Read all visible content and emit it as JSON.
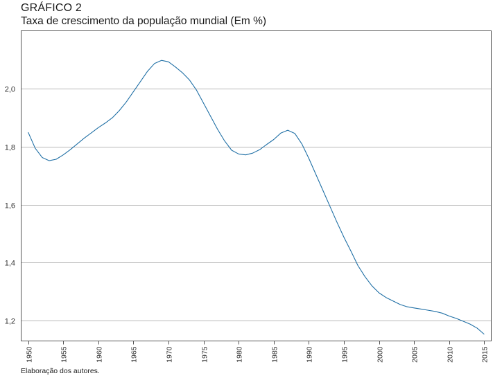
{
  "figure": {
    "label": "GRÁFICO 2",
    "title": "Taxa de crescimento da população mundial (Em %)",
    "source": "Elaboração dos autores."
  },
  "chart_data": {
    "type": "line",
    "title": "Taxa de crescimento da população mundial (Em %)",
    "xlabel": "",
    "ylabel": "",
    "xlim": [
      1949,
      2016
    ],
    "ylim": [
      1.13,
      2.2
    ],
    "grid": true,
    "y_ticks": [
      1.2,
      1.4,
      1.6,
      1.8,
      2.0
    ],
    "y_tick_labels": [
      "1,2",
      "1,4",
      "1,6",
      "1,8",
      "2,0"
    ],
    "x_ticks": [
      1950,
      1955,
      1960,
      1965,
      1970,
      1975,
      1980,
      1985,
      1990,
      1995,
      2000,
      2005,
      2010,
      2015
    ],
    "x_tick_labels": [
      "1950",
      "1955",
      "1960",
      "1965",
      "1970",
      "1975",
      "1980",
      "1985",
      "1990",
      "1995",
      "2000",
      "2005",
      "2010",
      "2015"
    ],
    "line_color": "#1f6fa5",
    "series": [
      {
        "x": [
          1950,
          1951,
          1952,
          1953,
          1954,
          1955,
          1956,
          1957,
          1958,
          1959,
          1960,
          1961,
          1962,
          1963,
          1964,
          1965,
          1966,
          1967,
          1968,
          1969,
          1970,
          1971,
          1972,
          1973,
          1974,
          1975,
          1976,
          1977,
          1978,
          1979,
          1980,
          1981,
          1982,
          1983,
          1984,
          1985,
          1986,
          1987,
          1988,
          1989,
          1990,
          1991,
          1992,
          1993,
          1994,
          1995,
          1996,
          1997,
          1998,
          1999,
          2000,
          2001,
          2002,
          2003,
          2004,
          2005,
          2006,
          2007,
          2008,
          2009,
          2010,
          2011,
          2012,
          2013,
          2014,
          2015
        ],
        "y": [
          1.85,
          1.795,
          1.763,
          1.752,
          1.757,
          1.772,
          1.79,
          1.81,
          1.83,
          1.848,
          1.866,
          1.882,
          1.9,
          1.925,
          1.955,
          1.99,
          2.025,
          2.06,
          2.087,
          2.098,
          2.093,
          2.075,
          2.055,
          2.03,
          1.995,
          1.95,
          1.905,
          1.86,
          1.82,
          1.788,
          1.775,
          1.772,
          1.778,
          1.79,
          1.808,
          1.825,
          1.847,
          1.857,
          1.846,
          1.81,
          1.76,
          1.705,
          1.65,
          1.595,
          1.54,
          1.488,
          1.44,
          1.39,
          1.352,
          1.32,
          1.296,
          1.28,
          1.268,
          1.256,
          1.248,
          1.244,
          1.24,
          1.236,
          1.232,
          1.226,
          1.216,
          1.208,
          1.198,
          1.188,
          1.174,
          1.153
        ]
      }
    ]
  }
}
